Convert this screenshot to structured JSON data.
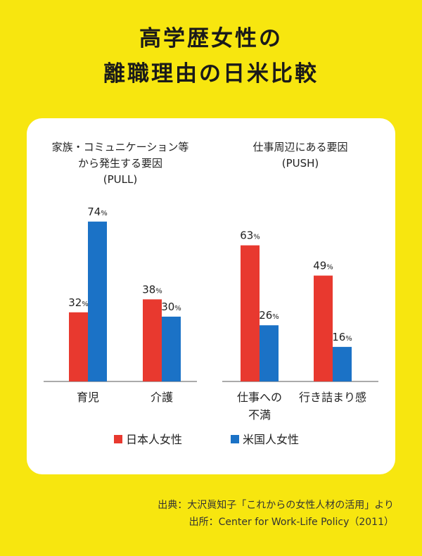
{
  "title": {
    "line1": "高学歴女性の",
    "line2": "離職理由の日米比較"
  },
  "chart_data": {
    "type": "bar",
    "groups": [
      {
        "title_lines": [
          "家族・コミュニケーション等",
          "から発生する要因",
          "(PULL)"
        ],
        "categories": [
          [
            "育児"
          ],
          [
            "介護"
          ]
        ],
        "series": [
          {
            "name": "日本人女性",
            "values": [
              32,
              38
            ]
          },
          {
            "name": "米国人女性",
            "values": [
              74,
              30
            ]
          }
        ]
      },
      {
        "title_lines": [
          "仕事周辺にある要因",
          "(PUSH)"
        ],
        "categories": [
          [
            "仕事への",
            "不満"
          ],
          [
            "行き詰まり感"
          ]
        ],
        "series": [
          {
            "name": "日本人女性",
            "values": [
              63,
              49
            ]
          },
          {
            "name": "米国人女性",
            "values": [
              26,
              16
            ]
          }
        ]
      }
    ],
    "legend": [
      "日本人女性",
      "米国人女性"
    ],
    "legend_position": "bottom",
    "value_suffix": "%",
    "ylim": [
      0,
      80
    ],
    "grid": false
  },
  "colors": {
    "japan": "#E8392F",
    "usa": "#1B72C6",
    "background": "#F7E60F"
  },
  "source": {
    "line1": "出典：大沢眞知子「これからの女性人材の活用」より",
    "line2": "出所：Center for Work-Life Policy（2011）"
  }
}
